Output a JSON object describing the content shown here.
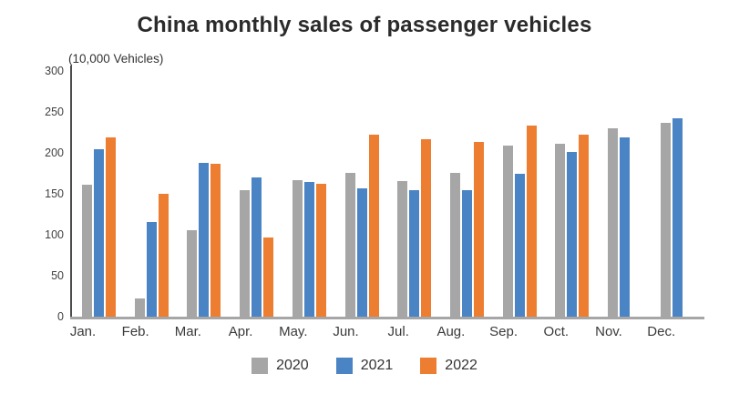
{
  "title": "China monthly sales of passenger vehicles",
  "y_axis_unit_label": "(10,000 Vehicles)",
  "chart_data": {
    "type": "bar",
    "title": "China monthly sales of passenger vehicles",
    "ylabel": "(10,000 Vehicles)",
    "xlabel": "",
    "categories": [
      "Jan.",
      "Feb.",
      "Mar.",
      "Apr.",
      "May.",
      "Jun.",
      "Jul.",
      "Aug.",
      "Sep.",
      "Oct.",
      "Nov.",
      "Dec."
    ],
    "series": [
      {
        "name": "2020",
        "color": "#a6a6a6",
        "values": [
          161,
          22,
          106,
          154,
          167,
          176,
          166,
          176,
          209,
          211,
          230,
          237
        ]
      },
      {
        "name": "2021",
        "color": "#4a84c4",
        "values": [
          205,
          116,
          188,
          170,
          164,
          157,
          155,
          155,
          175,
          201,
          219,
          242
        ]
      },
      {
        "name": "2022",
        "color": "#ed7d31",
        "values": [
          219,
          150,
          187,
          97,
          162,
          222,
          217,
          213,
          233,
          222,
          null,
          null
        ]
      }
    ],
    "ylim": [
      0,
      300
    ],
    "yticks": [
      0,
      50,
      100,
      150,
      200,
      250,
      300
    ],
    "grid": false,
    "legend_position": "bottom",
    "axis_colors": {
      "y_axis": "#4d4d4d",
      "x_axis": "#a6a6a6"
    }
  }
}
